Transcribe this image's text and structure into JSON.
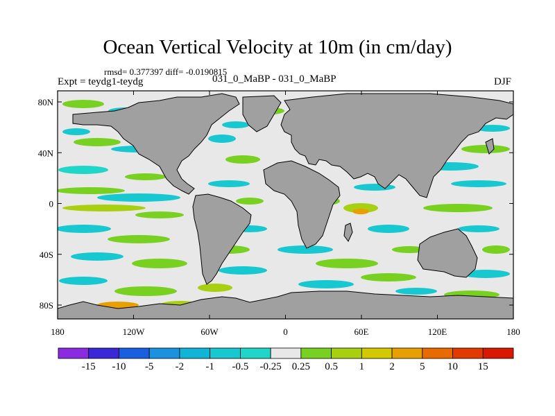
{
  "title": "Ocean Vertical Velocity at 10m (in cm/day)",
  "stats": "rmsd= 0.377397 diff= -0.0190815",
  "left_label": "Expt = teydg1-teydg",
  "center_label": "031_0_MaBP - 031_0_MaBP",
  "right_label": "DJF",
  "y_ticks": [
    "80N",
    "40N",
    "0",
    "40S",
    "80S"
  ],
  "x_ticks": [
    "180",
    "120W",
    "60W",
    "0",
    "60E",
    "120E",
    "180"
  ],
  "colorbar": {
    "labels": [
      "-15",
      "-10",
      "-5",
      "-2",
      "-1",
      "-0.5",
      "-0.25",
      "0.25",
      "0.5",
      "1",
      "2",
      "5",
      "10",
      "15"
    ],
    "colors": [
      "#8a2be2",
      "#3a28d8",
      "#1a5fe0",
      "#1a92e0",
      "#10b4d6",
      "#18c8d0",
      "#20d6c8",
      "#e8e8e8",
      "#78d020",
      "#a8d010",
      "#d4c800",
      "#e8a000",
      "#e86a00",
      "#e03a00",
      "#d81800"
    ]
  },
  "colors": {
    "land": "#a0a0a0",
    "ocean_base": "#e8e8e8"
  }
}
